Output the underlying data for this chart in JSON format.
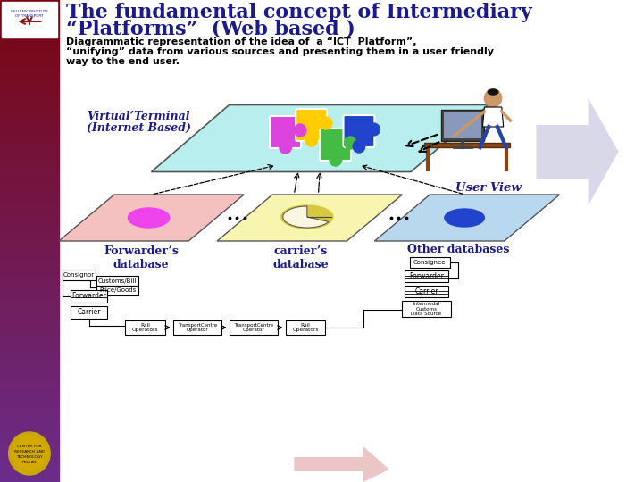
{
  "title_line1": "The fundamental concept of Intermediary",
  "title_line2": "“Platforms”  (Web based )",
  "subtitle_line1": "Diagrammatic representation of the idea of  a “ICT  Platform”,",
  "subtitle_line2": "“unifying” data from various sources and presenting them in a user friendly",
  "subtitle_line3": "way to the end user.",
  "title_color": "#1a1a8c",
  "subtitle_color": "#000000",
  "bg_color": "#ffffff",
  "virtual_terminal_label1": "Virtual’Terminal",
  "virtual_terminal_label2": "(Internet Based)",
  "virtual_terminal_color": "#1a1a8c",
  "user_view_label": "User View",
  "user_view_color": "#1a1a8c",
  "db1_label": "Forwarder’s\ndatabase",
  "db2_label": "carrier’s\ndatabase",
  "db3_label": "Other databases",
  "db_label_color": "#1a1a8c",
  "platform_fill": "#b8eeee",
  "fw_platform_fill": "#f5c0c0",
  "ca_platform_fill": "#f8f5b0",
  "ot_platform_fill": "#b8d8f0"
}
